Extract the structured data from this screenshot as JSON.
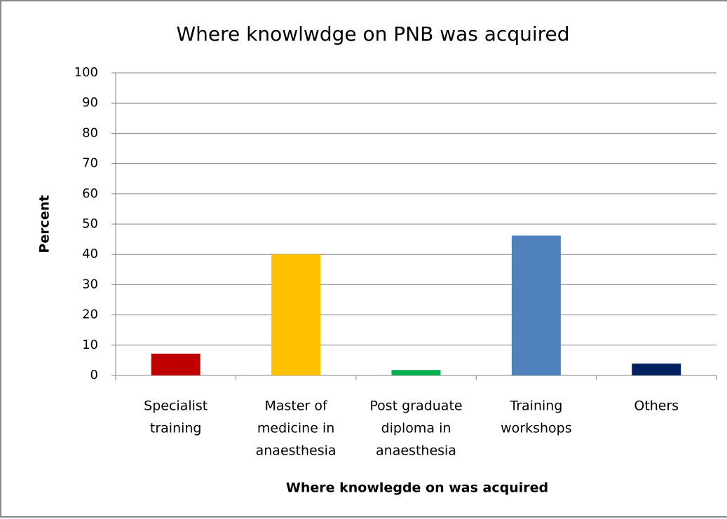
{
  "chart_data": {
    "type": "bar",
    "title": "Where knowlwdge on PNB was acquired",
    "x_label": "Where knowlegde on was acquired",
    "y_label": "Percent",
    "categories": [
      [
        "Specialist",
        "training"
      ],
      [
        "Master of",
        "medicine in",
        "anaesthesia"
      ],
      [
        "Post graduate",
        "diploma in",
        "anaesthesia"
      ],
      [
        "Training",
        "workshops"
      ],
      [
        "Others"
      ]
    ],
    "values": [
      7.2,
      40,
      1.8,
      46.2,
      3.9
    ],
    "colors": [
      "#c00000",
      "#ffc000",
      "#00b050",
      "#4f81bd",
      "#002060"
    ],
    "ylim": [
      0,
      100
    ],
    "yticks": [
      0,
      10,
      20,
      30,
      40,
      50,
      60,
      70,
      80,
      90,
      100
    ],
    "grid": true
  }
}
